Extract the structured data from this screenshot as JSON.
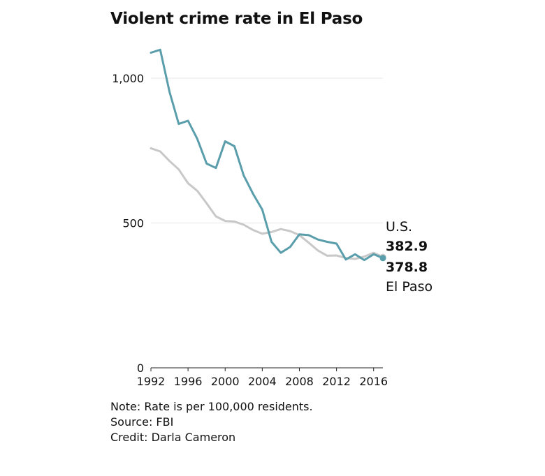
{
  "chart_data": {
    "type": "line",
    "title": "Violent crime rate in El Paso",
    "xlabel": "",
    "ylabel": "",
    "xlim": [
      1992,
      2017
    ],
    "ylim": [
      0,
      1000
    ],
    "x_ticks": [
      1992,
      1996,
      2000,
      2004,
      2008,
      2012,
      2016
    ],
    "y_ticks": [
      0,
      500,
      1000
    ],
    "y_tick_labels": [
      "0",
      "500",
      "1,000"
    ],
    "grid": true,
    "series": [
      {
        "name": "U.S.",
        "color": "#c8c8c8",
        "end_value_label": "382.9",
        "x": [
          1992,
          1993,
          1994,
          1995,
          1996,
          1997,
          1998,
          1999,
          2000,
          2001,
          2002,
          2003,
          2004,
          2005,
          2006,
          2007,
          2008,
          2009,
          2010,
          2011,
          2012,
          2013,
          2014,
          2015,
          2016,
          2017
        ],
        "values": [
          758,
          747,
          714,
          685,
          637,
          611,
          568,
          523,
          507,
          505,
          494,
          476,
          463,
          469,
          479,
          472,
          458,
          432,
          405,
          387,
          388,
          379,
          376,
          384,
          397,
          382.9
        ]
      },
      {
        "name": "El Paso",
        "color": "#5a9eac",
        "end_value_label": "378.8",
        "x": [
          1992,
          1993,
          1994,
          1995,
          1996,
          1997,
          1998,
          1999,
          2000,
          2001,
          2002,
          2003,
          2004,
          2005,
          2006,
          2007,
          2008,
          2009,
          2010,
          2011,
          2012,
          2013,
          2014,
          2015,
          2016,
          2017
        ],
        "values": [
          1088,
          1098,
          953,
          842,
          853,
          790,
          705,
          690,
          782,
          765,
          664,
          601,
          546,
          435,
          397,
          417,
          461,
          458,
          443,
          435,
          429,
          374,
          392,
          372,
          392,
          378.8
        ]
      }
    ]
  },
  "notes": {
    "note": "Note: Rate is per 100,000 residents.",
    "source": "Source: FBI",
    "credit": "Credit: Darla Cameron"
  }
}
